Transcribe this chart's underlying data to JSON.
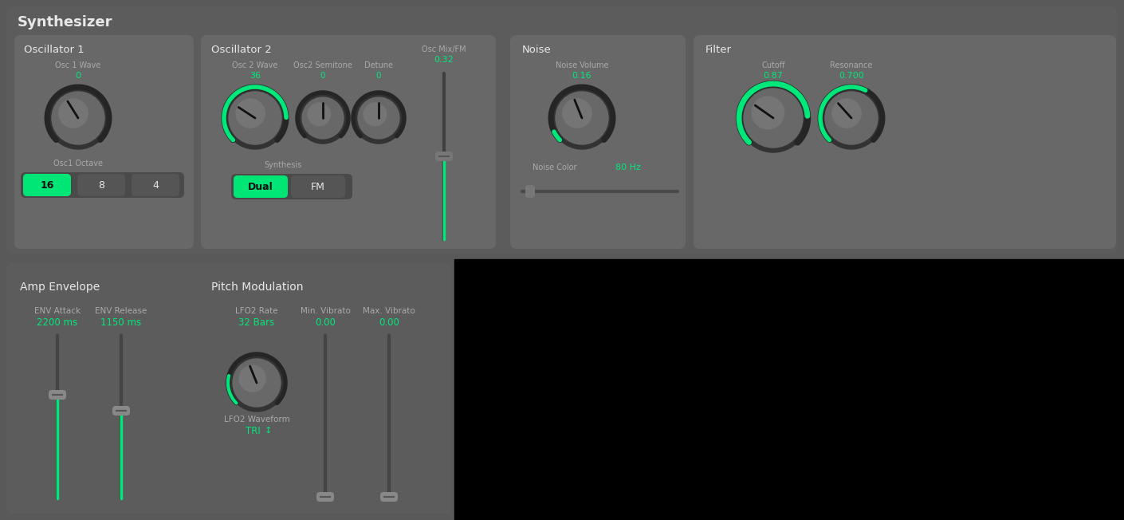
{
  "bg_top": "#595959",
  "bg_bottom": "#000000",
  "panel_bg": "#686868",
  "section_bg": "#636363",
  "knob_outer": "#333333",
  "knob_body": "#686868",
  "knob_highlight": "#787878",
  "green": "#00e87a",
  "white": "#e8e8e8",
  "gray_text": "#aaaaaa",
  "button_green": "#00e676",
  "button_inactive": "#555555",
  "button_group_bg": "#4a4a4a",
  "slider_track": "#3a3a3a",
  "slider_handle": "#888888",
  "title": "Synthesizer",
  "section_osc1": "Oscillator 1",
  "section_osc2": "Oscillator 2",
  "section_noise": "Noise",
  "section_filter": "Filter",
  "section_amp": "Amp Envelope",
  "section_pitch": "Pitch Modulation",
  "lbl_osc1wave": "Osc 1 Wave",
  "val_osc1wave": "0",
  "lbl_osc1oct": "Osc1 Octave",
  "lbl_osc2wave": "Osc 2 Wave",
  "val_osc2wave": "36",
  "lbl_semitone": "Osc2 Semitone",
  "val_semitone": "0",
  "lbl_detune": "Detune",
  "val_detune": "0",
  "lbl_synthesis": "Synthesis",
  "lbl_oscmix": "Osc Mix/FM",
  "val_oscmix": "0.32",
  "lbl_noisevol": "Noise Volume",
  "val_noisevol": "0.16",
  "lbl_noisecolor": "Noise Color",
  "val_noisecolor": "80 Hz",
  "lbl_cutoff": "Cutoff",
  "val_cutoff": "0.87",
  "lbl_resonance": "Resonance",
  "val_resonance": "0.700",
  "lbl_envattack": "ENV Attack",
  "val_envattack": "2200 ms",
  "lbl_envrelease": "ENV Release",
  "val_envrelease": "1150 ms",
  "lbl_lfo2rate": "LFO2 Rate",
  "val_lfo2rate": "32 Bars",
  "lbl_lfo2wave": "LFO2 Waveform",
  "val_lfo2wave": "TRI",
  "lbl_minvib": "Min. Vibrato",
  "val_minvib": "0.00",
  "lbl_maxvib": "Max. Vibrato",
  "val_maxvib": "0.00"
}
